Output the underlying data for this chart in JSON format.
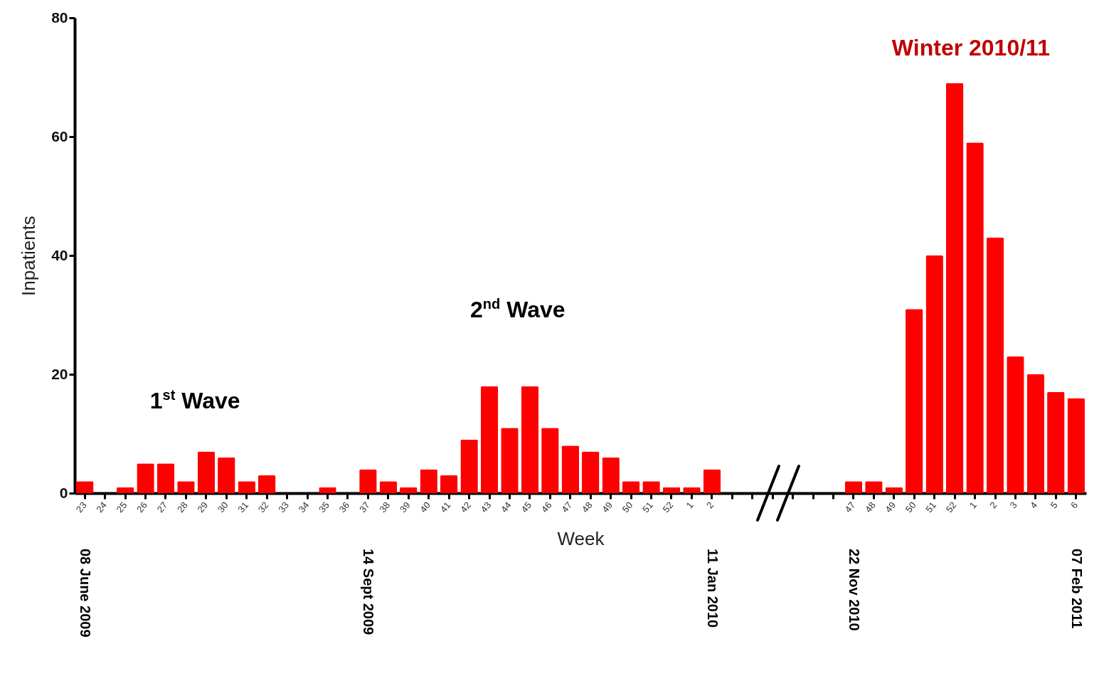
{
  "chart_data": {
    "type": "bar",
    "xlabel": "Week",
    "ylabel": "Inpatients",
    "color": "#ff0000",
    "categories": [
      "23",
      "24",
      "25",
      "26",
      "27",
      "28",
      "29",
      "30",
      "31",
      "32",
      "33",
      "34",
      "35",
      "36",
      "37",
      "38",
      "39",
      "40",
      "41",
      "42",
      "43",
      "44",
      "45",
      "46",
      "47",
      "48",
      "49",
      "50",
      "51",
      "52",
      "1",
      "2",
      null,
      null,
      null,
      null,
      null,
      null,
      "47",
      "48",
      "49",
      "50",
      "51",
      "52",
      "1",
      "2",
      "3",
      "4",
      "5",
      "6"
    ],
    "values": [
      2,
      0,
      1,
      5,
      5,
      2,
      7,
      6,
      2,
      3,
      0,
      0,
      1,
      0,
      4,
      2,
      1,
      4,
      3,
      9,
      18,
      11,
      18,
      11,
      8,
      7,
      6,
      2,
      2,
      1,
      1,
      4,
      null,
      null,
      null,
      null,
      null,
      null,
      2,
      2,
      1,
      31,
      40,
      69,
      59,
      43,
      23,
      20,
      17,
      16
    ],
    "ylim": [
      0,
      80
    ],
    "yticks": [
      0,
      20,
      40,
      60,
      80
    ],
    "annotations": [
      "1$^{st}$ Wave",
      "2$^{nd}$  Wave",
      "Winter 2010/11",
      "08 June 2009",
      "14 Sept 2009",
      "11 Jan 2010",
      "22 Nov 2010",
      "07 Feb 2011"
    ]
  }
}
